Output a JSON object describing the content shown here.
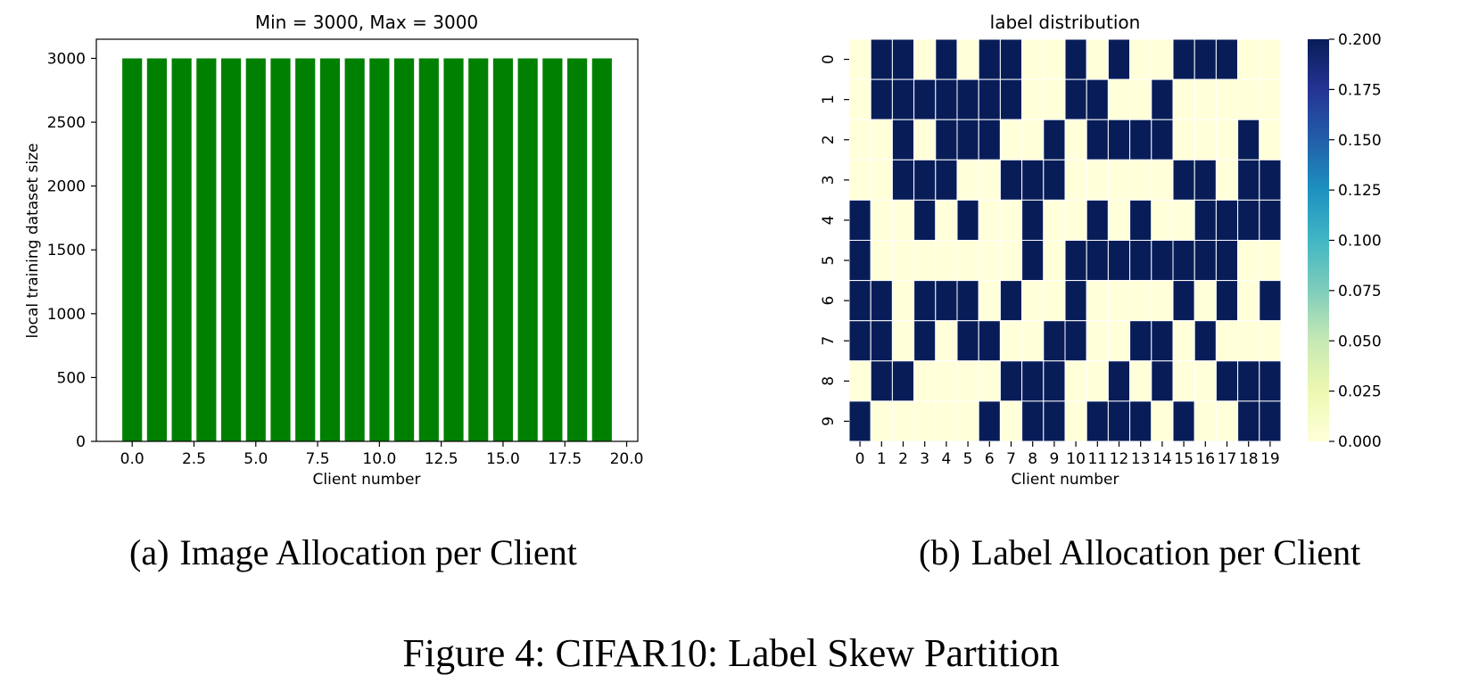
{
  "chart_data": [
    {
      "type": "bar",
      "title": "Min = 3000, Max = 3000",
      "xlabel": "Client number",
      "ylabel": "local training dataset size",
      "x": [
        0,
        1,
        2,
        3,
        4,
        5,
        6,
        7,
        8,
        9,
        10,
        11,
        12,
        13,
        14,
        15,
        16,
        17,
        18,
        19
      ],
      "values": [
        3000,
        3000,
        3000,
        3000,
        3000,
        3000,
        3000,
        3000,
        3000,
        3000,
        3000,
        3000,
        3000,
        3000,
        3000,
        3000,
        3000,
        3000,
        3000,
        3000
      ],
      "xlim": [
        -1.45,
        20.45
      ],
      "ylim": [
        0,
        3150
      ],
      "xticks": [
        "0.0",
        "2.5",
        "5.0",
        "7.5",
        "10.0",
        "12.5",
        "15.0",
        "17.5",
        "20.0"
      ],
      "xtick_values": [
        0,
        2.5,
        5,
        7.5,
        10,
        12.5,
        15,
        17.5,
        20
      ],
      "yticks": [
        "0",
        "500",
        "1000",
        "1500",
        "2000",
        "2500",
        "3000"
      ],
      "ytick_values": [
        0,
        500,
        1000,
        1500,
        2000,
        2500,
        3000
      ],
      "bar_color": "#008000",
      "grid": false,
      "legend": "none"
    },
    {
      "type": "heatmap",
      "title": "label distribution",
      "xlabel": "Client number",
      "ylabel": "",
      "x_labels": [
        "0",
        "1",
        "2",
        "3",
        "4",
        "5",
        "6",
        "7",
        "8",
        "9",
        "10",
        "11",
        "12",
        "13",
        "14",
        "15",
        "16",
        "17",
        "18",
        "19"
      ],
      "y_labels": [
        "0",
        "1",
        "2",
        "3",
        "4",
        "5",
        "6",
        "7",
        "8",
        "9"
      ],
      "values": [
        [
          0,
          0.2,
          0.2,
          0,
          0.2,
          0,
          0.2,
          0.2,
          0,
          0,
          0.2,
          0,
          0.2,
          0,
          0,
          0.2,
          0.2,
          0.2,
          0,
          0
        ],
        [
          0,
          0.2,
          0.2,
          0.2,
          0.2,
          0.2,
          0.2,
          0.2,
          0,
          0,
          0.2,
          0.2,
          0,
          0,
          0.2,
          0,
          0,
          0,
          0,
          0
        ],
        [
          0,
          0,
          0.2,
          0,
          0.2,
          0.2,
          0.2,
          0,
          0,
          0.2,
          0,
          0.2,
          0.2,
          0.2,
          0.2,
          0,
          0,
          0,
          0.2,
          0
        ],
        [
          0,
          0,
          0.2,
          0.2,
          0.2,
          0,
          0,
          0.2,
          0.2,
          0.2,
          0,
          0,
          0,
          0,
          0,
          0.2,
          0.2,
          0,
          0.2,
          0.2
        ],
        [
          0.2,
          0,
          0,
          0.2,
          0,
          0.2,
          0,
          0,
          0.2,
          0,
          0,
          0.2,
          0,
          0.2,
          0,
          0,
          0.2,
          0.2,
          0.2,
          0.2
        ],
        [
          0.2,
          0,
          0,
          0,
          0,
          0,
          0,
          0,
          0.2,
          0,
          0.2,
          0.2,
          0.2,
          0.2,
          0.2,
          0.2,
          0.2,
          0.2,
          0,
          0
        ],
        [
          0.2,
          0.2,
          0,
          0.2,
          0.2,
          0.2,
          0,
          0.2,
          0,
          0,
          0.2,
          0,
          0,
          0,
          0,
          0.2,
          0,
          0.2,
          0,
          0.2
        ],
        [
          0.2,
          0.2,
          0,
          0.2,
          0,
          0.2,
          0.2,
          0,
          0,
          0.2,
          0.2,
          0,
          0,
          0.2,
          0.2,
          0,
          0.2,
          0,
          0,
          0
        ],
        [
          0,
          0.2,
          0.2,
          0,
          0,
          0,
          0,
          0.2,
          0.2,
          0.2,
          0,
          0,
          0.2,
          0,
          0.2,
          0,
          0,
          0.2,
          0.2,
          0.2
        ],
        [
          0.2,
          0,
          0,
          0,
          0,
          0,
          0.2,
          0,
          0.2,
          0.2,
          0,
          0.2,
          0.2,
          0.2,
          0,
          0.2,
          0,
          0,
          0.2,
          0.2
        ]
      ],
      "vmin": 0.0,
      "vmax": 0.2,
      "colormap": "YlGnBu",
      "colormap_stops": [
        "#ffffd9",
        "#edf8b1",
        "#c7e9b4",
        "#7fcdbb",
        "#41b6c4",
        "#1d91c0",
        "#225ea8",
        "#253494",
        "#081d58"
      ],
      "colorbar_ticks": [
        "0.000",
        "0.025",
        "0.050",
        "0.075",
        "0.100",
        "0.125",
        "0.150",
        "0.175",
        "0.200"
      ],
      "colorbar_tick_values": [
        0,
        0.025,
        0.05,
        0.075,
        0.1,
        0.125,
        0.15,
        0.175,
        0.2
      ],
      "grid_lines_color": "#ffffff"
    }
  ],
  "captions": {
    "a_label": "(a)",
    "a_text": "Image Allocation per Client",
    "b_label": "(b)",
    "b_text": "Label Allocation per Client",
    "figure": "Figure 4: CIFAR10: Label Skew Partition"
  }
}
